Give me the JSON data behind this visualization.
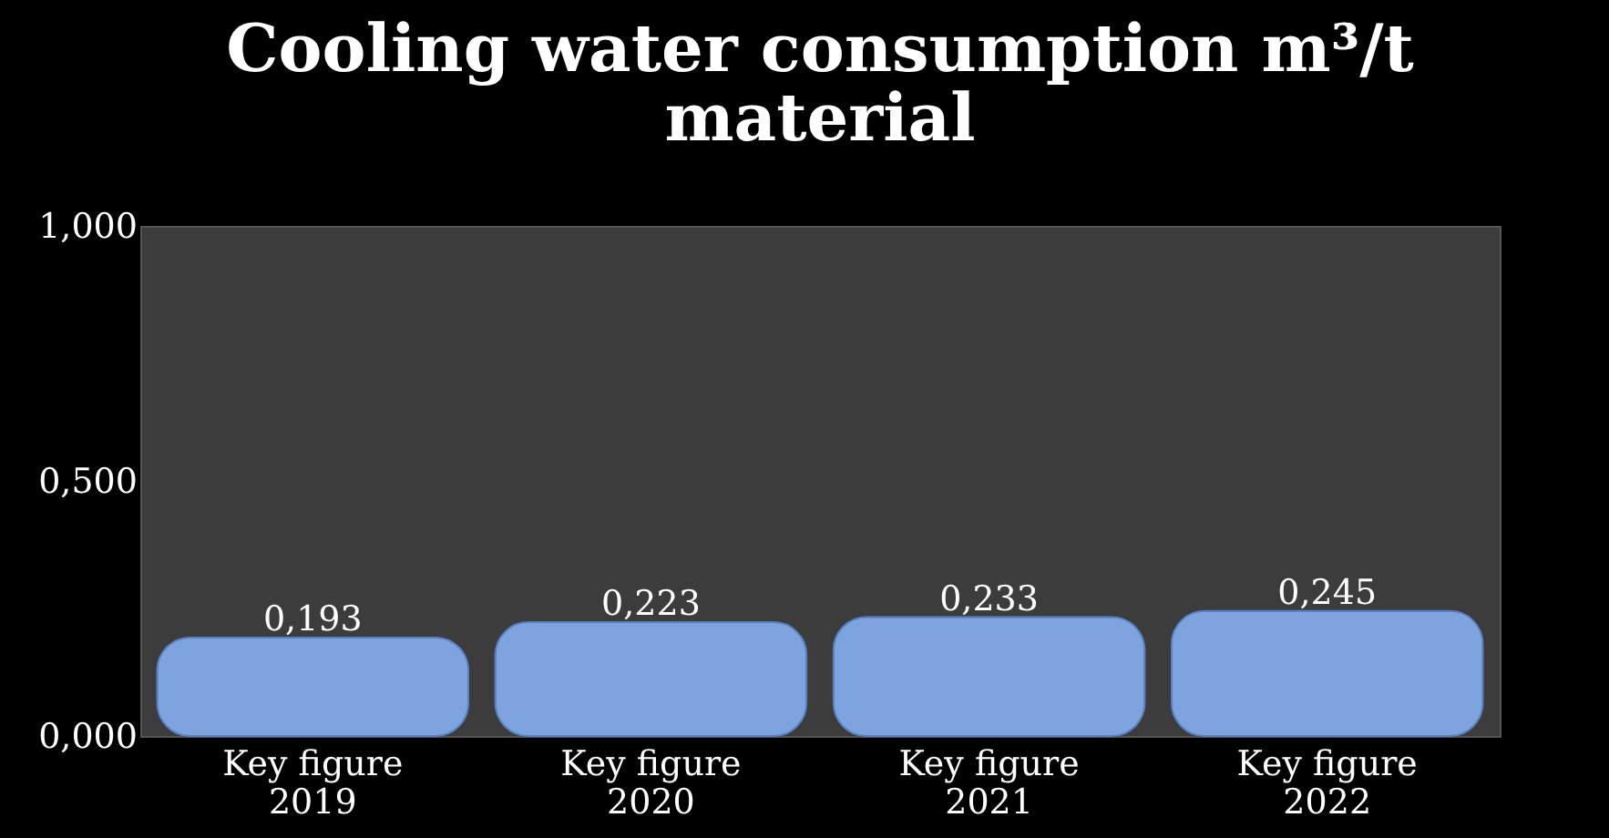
{
  "chart_data": {
    "type": "bar",
    "title": "Cooling water consumption m³/t material",
    "categories": [
      "Key figure 2019",
      "Key figure 2020",
      "Key figure 2021",
      "Key figure 2022"
    ],
    "values": [
      0.193,
      0.223,
      0.233,
      0.245
    ],
    "value_labels": [
      "0,193",
      "0,223",
      "0,233",
      "0,245"
    ],
    "color": "#7da4de",
    "ylim": [
      0,
      1
    ],
    "yticks": [
      {
        "value": 0,
        "label": "0,000"
      },
      {
        "value": 0.5,
        "label": "0,500"
      },
      {
        "value": 1,
        "label": "1,000"
      }
    ],
    "grid": false
  }
}
